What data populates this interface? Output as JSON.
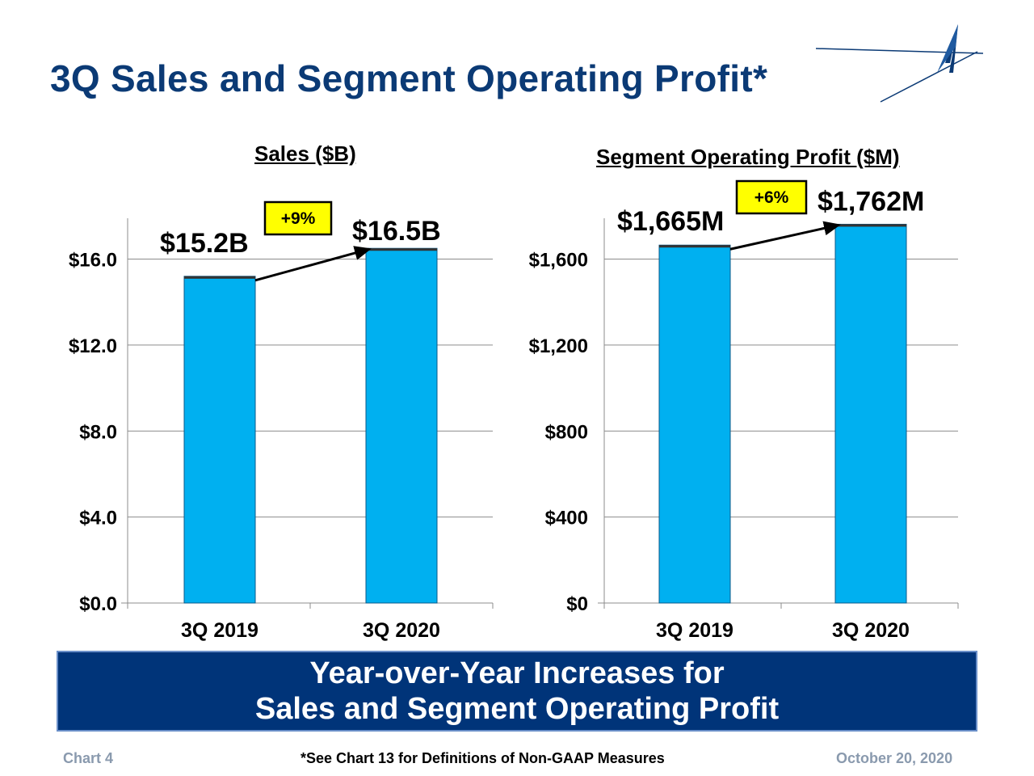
{
  "slide": {
    "title": "3Q Sales and Segment Operating Profit*"
  },
  "colors": {
    "title": "#0b3a75",
    "bar": "#00b0f0",
    "badge_fill": "#ffff00",
    "banner": "#003479"
  },
  "chart_data": [
    {
      "type": "bar",
      "title": "Sales ($B)",
      "categories": [
        "3Q 2019",
        "3Q 2020"
      ],
      "values": [
        15.2,
        16.5
      ],
      "value_labels": [
        "$15.2B",
        "$16.5B"
      ],
      "y_ticks": [
        0,
        4,
        8,
        12,
        16
      ],
      "y_tick_labels": [
        "$0.0",
        "$4.0",
        "$8.0",
        "$12.0",
        "$16.0"
      ],
      "ylim": [
        0,
        17.9
      ],
      "grid": true,
      "change_badge": "+9%"
    },
    {
      "type": "bar",
      "title": "Segment Operating Profit ($M)",
      "categories": [
        "3Q 2019",
        "3Q 2020"
      ],
      "values": [
        1665,
        1762
      ],
      "value_labels": [
        "$1,665M",
        "$1,762M"
      ],
      "y_ticks": [
        0,
        400,
        800,
        1200,
        1600
      ],
      "y_tick_labels": [
        "$0",
        "$400",
        "$800",
        "$1,200",
        "$1,600"
      ],
      "ylim": [
        0,
        1790
      ],
      "grid": true,
      "change_badge": "+6%"
    }
  ],
  "banner": {
    "line1": "Year-over-Year Increases for",
    "line2": "Sales and Segment Operating Profit"
  },
  "footer": {
    "chart_number": "Chart 4",
    "note": "*See Chart 13 for Definitions of Non-GAAP Measures",
    "date": "October 20, 2020"
  }
}
